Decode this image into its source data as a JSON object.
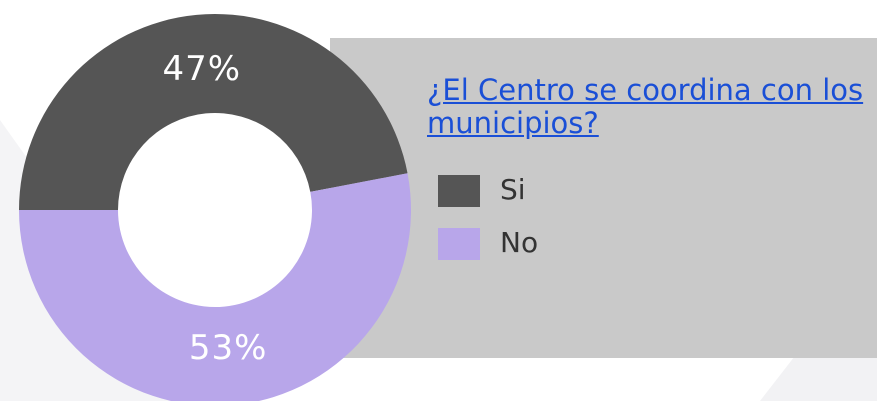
{
  "chart_data": {
    "type": "pie",
    "title": "¿El Centro se coordina con los municipios?",
    "categories": [
      "Si",
      "No"
    ],
    "values": [
      47,
      53
    ],
    "value_labels": [
      "47%",
      "53%"
    ],
    "colors": [
      "#555555",
      "#b8a6ea"
    ],
    "donut": true
  }
}
